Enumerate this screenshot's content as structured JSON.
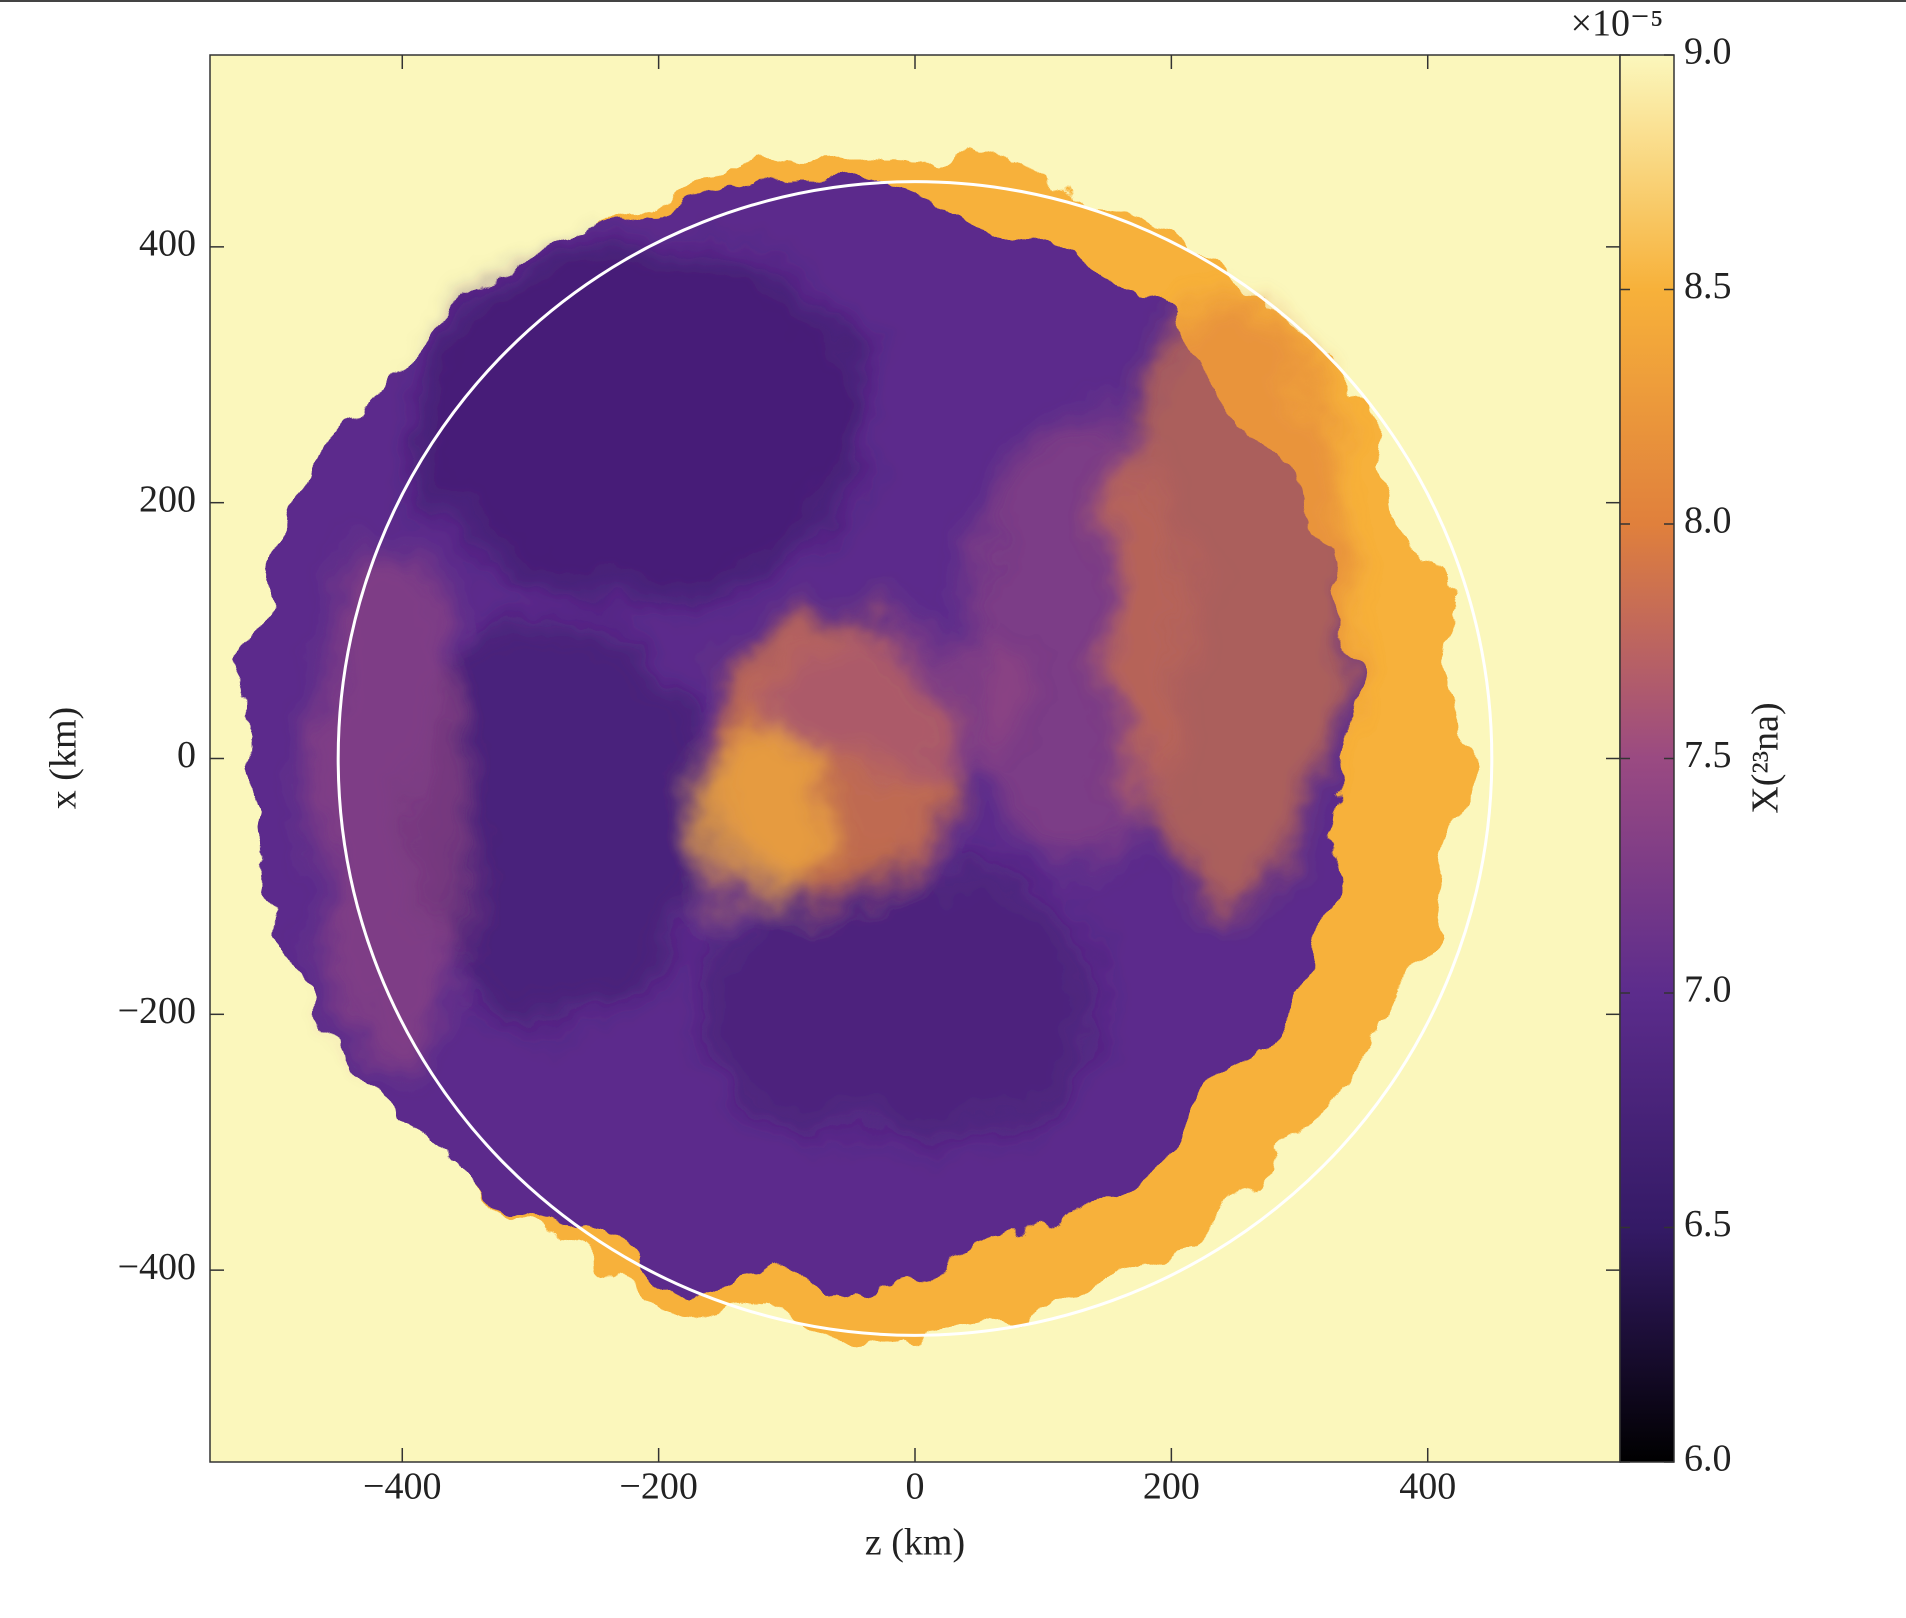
{
  "chart_data": {
    "type": "heatmap",
    "xlabel": "z  (km)",
    "ylabel": "x  (km)",
    "xlim": [
      -550,
      550
    ],
    "ylim": [
      -550,
      550
    ],
    "xticks": [
      {
        "value": -400,
        "label": "−400"
      },
      {
        "value": -200,
        "label": "−200"
      },
      0,
      200,
      400
    ],
    "yticks": [
      {
        "value": -400,
        "label": "−400"
      },
      {
        "value": -200,
        "label": "−200"
      },
      0,
      200,
      400
    ],
    "colorbar": {
      "label": "X(²³na)",
      "scale_label": "×10⁻⁵",
      "clim": [
        6.0,
        9.0
      ],
      "ticks": [
        {
          "value": 6,
          "label": "6.0"
        },
        {
          "value": 6.5,
          "label": "6.5"
        },
        {
          "value": 7,
          "label": "7.0"
        },
        {
          "value": 7.5,
          "label": "7.5"
        },
        {
          "value": 8,
          "label": "8.0"
        },
        {
          "value": 8.5,
          "label": "8.5"
        },
        {
          "value": 9,
          "label": "9.0"
        }
      ],
      "colormap": [
        "#000000",
        "#341a66",
        "#5c2c8c",
        "#9a4a82",
        "#e0803c",
        "#f7b13a",
        "#fbf7bc"
      ]
    },
    "reference_circle": {
      "radius": 450,
      "color": "#ffffff"
    }
  }
}
